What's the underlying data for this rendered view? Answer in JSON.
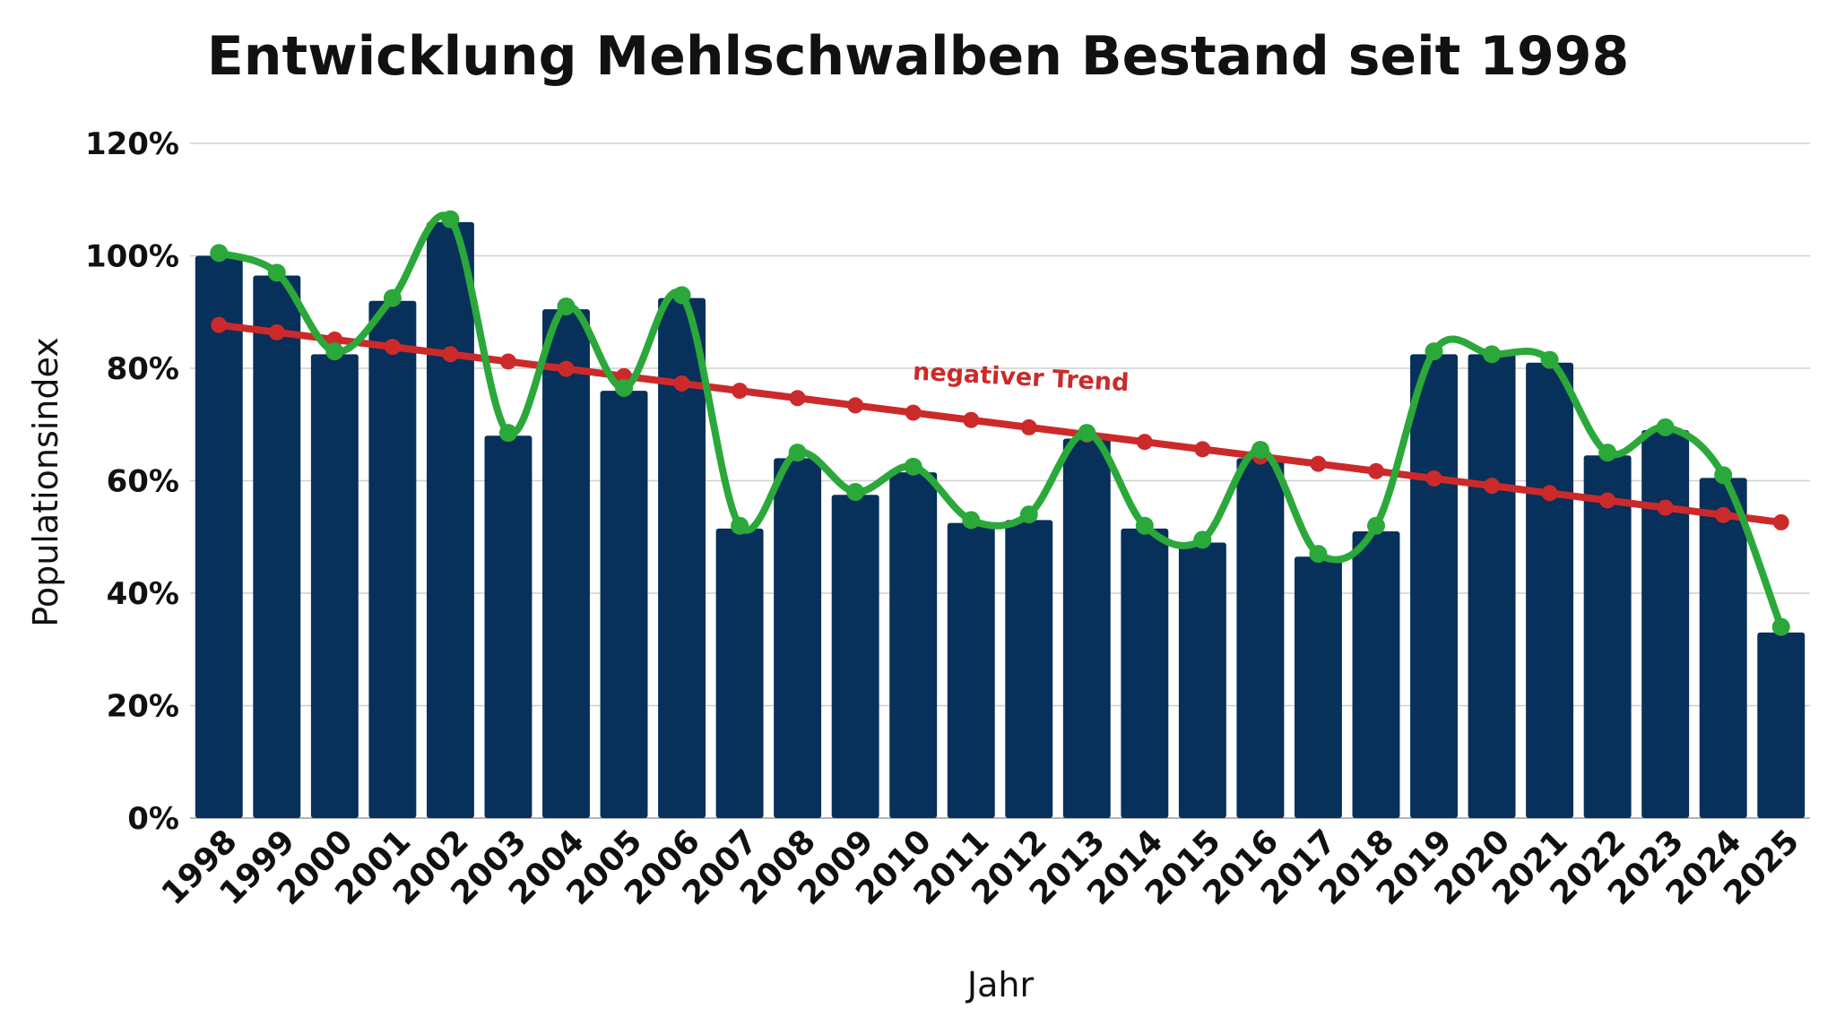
{
  "chart_data": {
    "type": "bar",
    "title": "Entwicklung Mehlschwalben Bestand seit 1998",
    "xlabel": "Jahr",
    "ylabel": "Populationsindex",
    "categories": [
      "1998",
      "1999",
      "2000",
      "2001",
      "2002",
      "2003",
      "2004",
      "2005",
      "2006",
      "2007",
      "2008",
      "2009",
      "2010",
      "2011",
      "2012",
      "2013",
      "2014",
      "2015",
      "2016",
      "2017",
      "2018",
      "2019",
      "2020",
      "2021",
      "2022",
      "2023",
      "2024",
      "2025"
    ],
    "y_ticks": [
      "0%",
      "20%",
      "40%",
      "60%",
      "80%",
      "100%",
      "120%"
    ],
    "ylim": [
      0,
      120
    ],
    "y_unit": "%",
    "grid": true,
    "legend": "none",
    "series": [
      {
        "kind": "bar",
        "color": "#07305a",
        "values": [
          100,
          96.5,
          82.5,
          92,
          106,
          68,
          90.5,
          76,
          92.5,
          51.5,
          64,
          57.5,
          61.5,
          52.5,
          53,
          67.5,
          51.5,
          49,
          64,
          46.5,
          51,
          82.5,
          82.5,
          81,
          64.5,
          69,
          60.5,
          33
        ]
      },
      {
        "kind": "line",
        "smooth": true,
        "color": "#2ba83a",
        "values": [
          100.5,
          97,
          83,
          92.5,
          106.5,
          68.5,
          91,
          76.5,
          93,
          52,
          65,
          58,
          62.5,
          53,
          54,
          68.5,
          52,
          49.5,
          65.5,
          47,
          52,
          83,
          82.5,
          81.5,
          65,
          69.5,
          61,
          34
        ]
      },
      {
        "kind": "line",
        "smooth": false,
        "color": "#cc2a2a",
        "values": [
          87.7,
          86.4,
          85.1,
          83.8,
          82.5,
          81.2,
          79.9,
          78.6,
          77.3,
          76,
          74.7,
          73.4,
          72.1,
          70.8,
          69.5,
          68.2,
          66.9,
          65.6,
          64.3,
          63,
          61.7,
          60.4,
          59.1,
          57.8,
          56.5,
          55.2,
          53.9,
          52.6
        ]
      }
    ],
    "annotations": [
      {
        "text": "negativer Trend",
        "color": "#cc2a2a",
        "near_category": "2012",
        "y": 78
      }
    ]
  }
}
